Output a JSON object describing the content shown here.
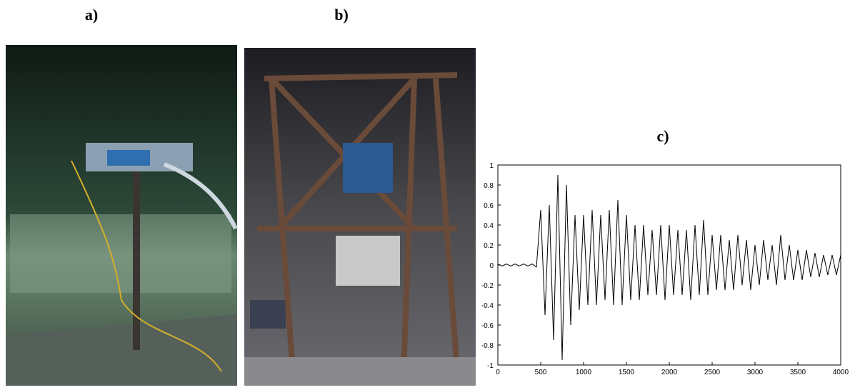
{
  "panel_labels": [
    "a)",
    "b)"
  ],
  "chart_data": {
    "type": "line",
    "title": "c)",
    "x": [
      0,
      50,
      100,
      150,
      200,
      250,
      300,
      350,
      400,
      450,
      500,
      550,
      600,
      650,
      700,
      750,
      800,
      850,
      900,
      950,
      1000,
      1050,
      1100,
      1150,
      1200,
      1250,
      1300,
      1350,
      1400,
      1450,
      1500,
      1550,
      1600,
      1650,
      1700,
      1750,
      1800,
      1850,
      1900,
      1950,
      2000,
      2050,
      2100,
      2150,
      2200,
      2250,
      2300,
      2350,
      2400,
      2450,
      2500,
      2550,
      2600,
      2650,
      2700,
      2750,
      2800,
      2850,
      2900,
      2950,
      3000,
      3050,
      3100,
      3150,
      3200,
      3250,
      3300,
      3350,
      3400,
      3450,
      3500,
      3550,
      3600,
      3650,
      3700,
      3750,
      3800,
      3850,
      3900,
      3950,
      4000
    ],
    "values": [
      0.01,
      -0.01,
      0.01,
      -0.01,
      0.01,
      -0.01,
      0.01,
      -0.01,
      0.01,
      -0.02,
      0.55,
      -0.5,
      0.6,
      -0.75,
      0.9,
      -0.95,
      0.8,
      -0.6,
      0.5,
      -0.45,
      0.5,
      -0.4,
      0.55,
      -0.4,
      0.5,
      -0.35,
      0.55,
      -0.4,
      0.65,
      -0.4,
      0.5,
      -0.35,
      0.4,
      -0.35,
      0.4,
      -0.3,
      0.35,
      -0.3,
      0.4,
      -0.35,
      0.4,
      -0.3,
      0.35,
      -0.3,
      0.35,
      -0.35,
      0.4,
      -0.3,
      0.45,
      -0.3,
      0.3,
      -0.25,
      0.3,
      -0.25,
      0.25,
      -0.25,
      0.3,
      -0.2,
      0.25,
      -0.25,
      0.2,
      -0.2,
      0.25,
      -0.15,
      0.2,
      -0.2,
      0.3,
      -0.15,
      0.2,
      -0.15,
      0.15,
      -0.15,
      0.15,
      -0.12,
      0.12,
      -0.12,
      0.1,
      -0.1,
      0.1,
      -0.1,
      0.1
    ],
    "color": "#000000",
    "xlim": [
      0,
      4000
    ],
    "ylim": [
      -1,
      1
    ],
    "xticks": [
      0,
      500,
      1000,
      1500,
      2000,
      2500,
      3000,
      3500,
      4000
    ],
    "yticks": [
      -1,
      -0.8,
      -0.6,
      -0.4,
      -0.2,
      0,
      0.2,
      0.4,
      0.6,
      0.8,
      1
    ]
  }
}
